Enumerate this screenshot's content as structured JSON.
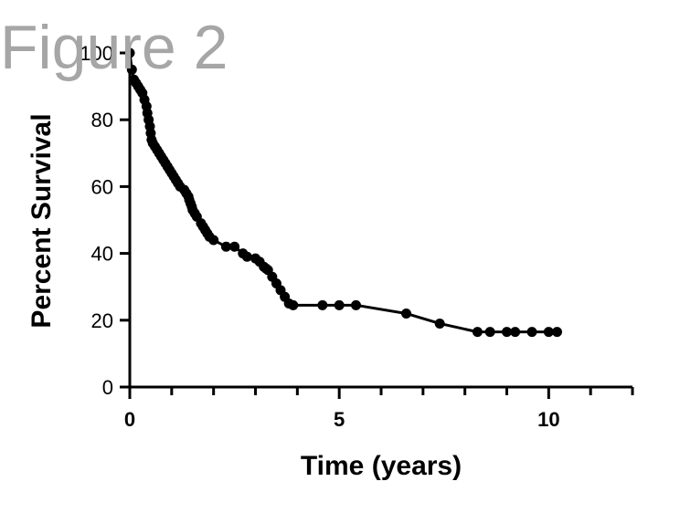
{
  "figure_title": "Figure 2",
  "chart_data": {
    "type": "line",
    "xlabel": "Time (years)",
    "ylabel": "Percent Survival",
    "xlim": [
      0,
      12
    ],
    "ylim": [
      0,
      100
    ],
    "x_ticks": [
      0,
      5,
      10
    ],
    "x_minor_ticks": [
      1,
      2,
      3,
      4,
      6,
      7,
      8,
      9,
      11,
      12
    ],
    "y_ticks": [
      0,
      20,
      40,
      60,
      80,
      100
    ],
    "grid": false,
    "legend": "none",
    "series": [
      {
        "color": "#000000",
        "marker": "circle",
        "x": [
          0,
          0.05,
          0.1,
          0.15,
          0.2,
          0.25,
          0.3,
          0.35,
          0.4,
          0.42,
          0.45,
          0.48,
          0.5,
          0.52,
          0.55,
          0.6,
          0.65,
          0.7,
          0.75,
          0.8,
          0.85,
          0.9,
          0.95,
          1.0,
          1.05,
          1.1,
          1.15,
          1.2,
          1.3,
          1.35,
          1.4,
          1.42,
          1.45,
          1.48,
          1.5,
          1.55,
          1.6,
          1.7,
          1.75,
          1.8,
          1.85,
          1.9,
          2.0,
          2.3,
          2.5,
          2.7,
          2.8,
          3.0,
          3.1,
          3.2,
          3.25,
          3.3,
          3.4,
          3.5,
          3.6,
          3.7,
          3.8,
          3.9,
          4.6,
          5.0,
          5.4,
          6.6,
          7.4,
          8.3,
          8.6,
          9.0,
          9.2,
          9.6,
          10.0,
          10.2
        ],
        "y": [
          100,
          95,
          92,
          91,
          90,
          89,
          88,
          86,
          84,
          82,
          80,
          78,
          76,
          74,
          73,
          72,
          71,
          70,
          69,
          68,
          67,
          66,
          65,
          64,
          63,
          62,
          61,
          60,
          59,
          58,
          57,
          56,
          55,
          54,
          53,
          52,
          51,
          49,
          48,
          47,
          46,
          45,
          44,
          42,
          42,
          40,
          39,
          38.5,
          37.5,
          36,
          35.5,
          35,
          33,
          31,
          29,
          27,
          25,
          24.5,
          24.5,
          24.5,
          24.5,
          22,
          19,
          16.5,
          16.5,
          16.5,
          16.5,
          16.5,
          16.5,
          16.5
        ]
      }
    ]
  }
}
